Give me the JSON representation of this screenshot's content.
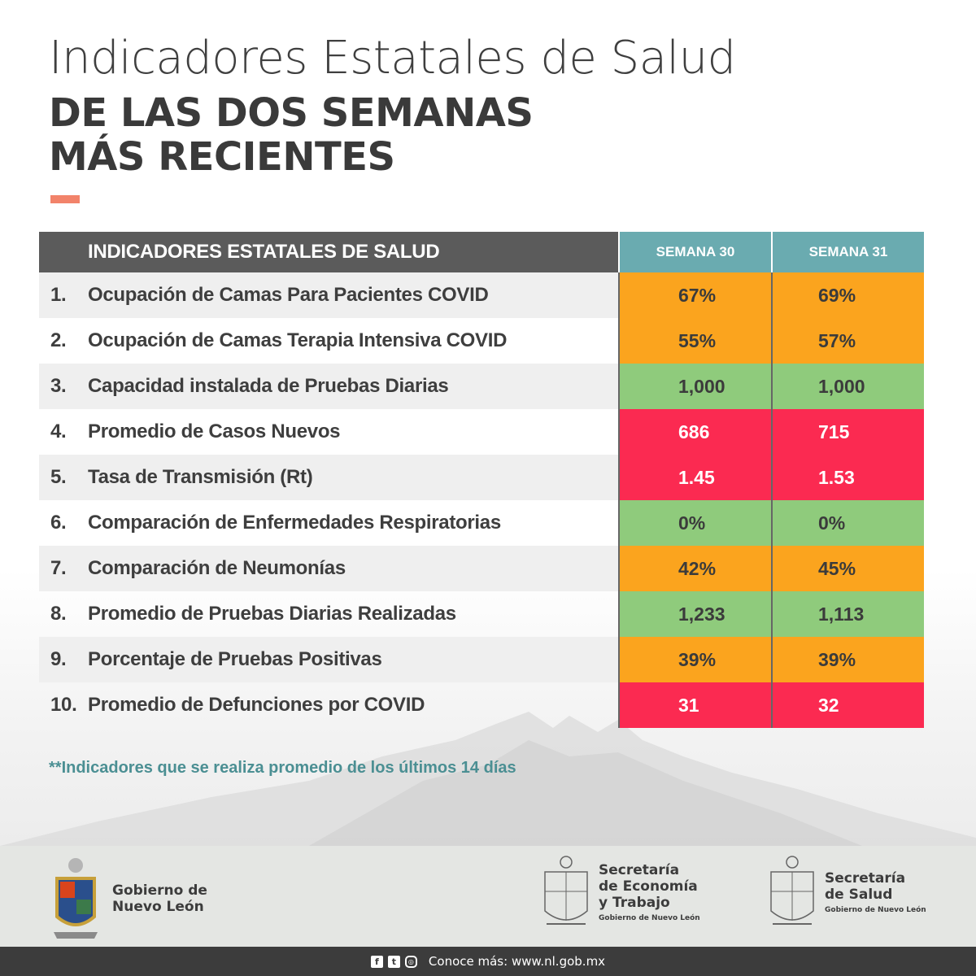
{
  "header": {
    "title_light": "Indicadores Estatales de Salud",
    "title_bold_1": "DE LAS DOS SEMANAS",
    "title_bold_2": "MÁS RECIENTES"
  },
  "colors": {
    "accent": "#f2836a",
    "header_gray": "#5b5b5b",
    "week_teal": "#6aabb0",
    "orange": "#fba41e",
    "green": "#8fcb7c",
    "red": "#fb2a51"
  },
  "table": {
    "header_label": "INDICADORES ESTATALES DE SALUD",
    "week_a": "SEMANA 30",
    "week_b": "SEMANA 31",
    "rows": [
      {
        "num": "1.",
        "label": "Ocupación de Camas Para Pacientes COVID",
        "a": "67%",
        "b": "69%",
        "color": "orange"
      },
      {
        "num": "2.",
        "label": "Ocupación de Camas Terapia Intensiva COVID",
        "a": "55%",
        "b": "57%",
        "color": "orange"
      },
      {
        "num": "3.",
        "label": "Capacidad instalada de Pruebas Diarias",
        "a": "1,000",
        "b": "1,000",
        "color": "green"
      },
      {
        "num": "4.",
        "label": "Promedio de Casos Nuevos",
        "a": "686",
        "b": "715",
        "color": "red"
      },
      {
        "num": "5.",
        "label": "Tasa de Transmisión (Rt)",
        "a": "1.45",
        "b": "1.53",
        "color": "red"
      },
      {
        "num": "6.",
        "label": "Comparación de Enfermedades Respiratorias",
        "a": "0%",
        "b": "0%",
        "color": "green"
      },
      {
        "num": "7.",
        "label": "Comparación de Neumonías",
        "a": "42%",
        "b": "45%",
        "color": "orange"
      },
      {
        "num": "8.",
        "label": "Promedio de Pruebas Diarias Realizadas",
        "a": "1,233",
        "b": "1,113",
        "color": "green"
      },
      {
        "num": "9.",
        "label": "Porcentaje de Pruebas Positivas",
        "a": "39%",
        "b": "39%",
        "color": "orange"
      },
      {
        "num": "10.",
        "label": "Promedio de Defunciones por COVID",
        "a": "31",
        "b": "32",
        "color": "red"
      }
    ]
  },
  "footnote": "**Indicadores que se realiza promedio de los últimos 14 días",
  "logos": {
    "gob_line1": "Gobierno de",
    "gob_line2": "Nuevo León",
    "eco_line1": "Secretaría",
    "eco_line2": "de Economía",
    "eco_line3": "y Trabajo",
    "eco_sub": "Gobierno de Nuevo León",
    "sal_line1": "Secretaría",
    "sal_line2": "de Salud",
    "sal_sub": "Gobierno de Nuevo León"
  },
  "bottom_bar": {
    "text": "Conoce más: www.nl.gob.mx",
    "social_icons": [
      "facebook-icon",
      "twitter-icon",
      "instagram-icon"
    ]
  }
}
